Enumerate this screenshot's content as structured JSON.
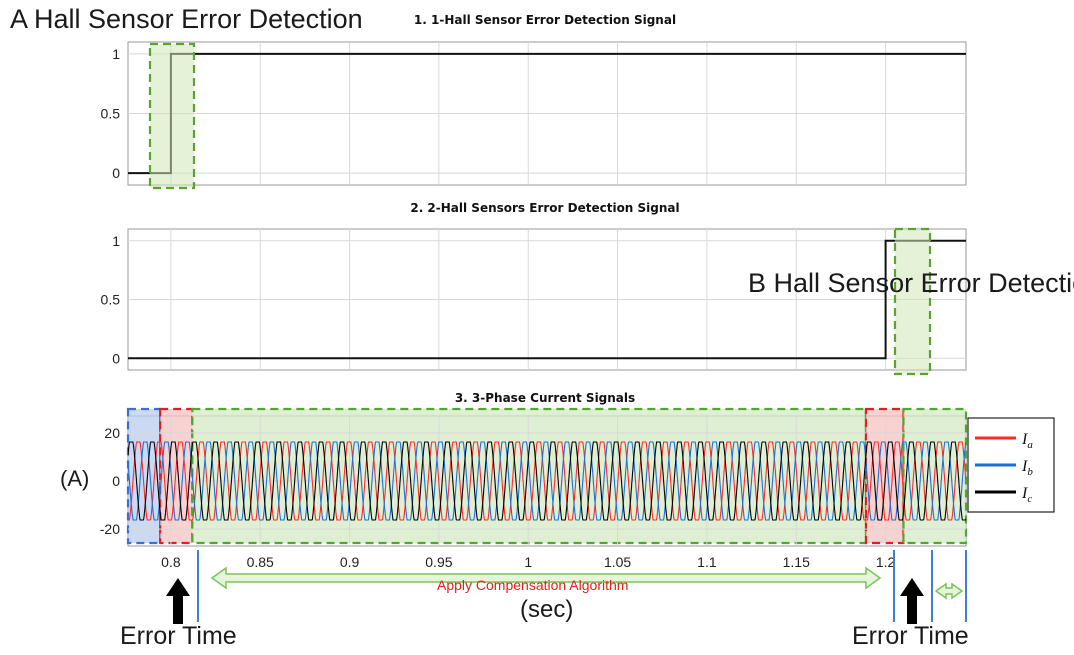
{
  "annotations": {
    "a_detect": "A Hall Sensor Error Detection",
    "b_detect": "B Hall Sensor Error Detection",
    "unit_a": "(A)",
    "unit_sec": "(sec)",
    "error_time_1": "Error Time",
    "error_time_2": "Error Time",
    "apply_comp": "Apply Compensation Algorithm"
  },
  "legend": [
    {
      "label": "I",
      "sub": "a",
      "color": "#ff2a2a"
    },
    {
      "label": "I",
      "sub": "b",
      "color": "#1f6fd6"
    },
    {
      "label": "I",
      "sub": "c",
      "color": "#000000"
    }
  ],
  "colors": {
    "highlight_green": "#4ea72e",
    "highlight_red": "#e02020",
    "highlight_blue": "#3a6fd8",
    "arrow_green": "#7cc45a"
  },
  "chart_data": [
    {
      "type": "line",
      "title": "1. 1-Hall Sensor Error Detection Signal",
      "x": [
        0.776,
        0.8,
        0.8,
        1.245
      ],
      "y": [
        0,
        0,
        1,
        1
      ],
      "xlim": [
        0.776,
        1.245
      ],
      "ylim": [
        -0.1,
        1.1
      ],
      "yticks": [
        "0",
        "0.5",
        "1"
      ],
      "grid": true
    },
    {
      "type": "line",
      "title": "2. 2-Hall Sensors Error Detection Signal",
      "x": [
        0.776,
        1.2,
        1.2,
        1.245
      ],
      "y": [
        0,
        0,
        1,
        1
      ],
      "xlim": [
        0.776,
        1.245
      ],
      "ylim": [
        -0.1,
        1.1
      ],
      "yticks": [
        "0",
        "0.5",
        "1"
      ],
      "grid": true
    },
    {
      "type": "line",
      "title": "3. 3-Phase Current Signals",
      "xlim": [
        0.776,
        1.245
      ],
      "ylim": [
        -27,
        27
      ],
      "yticks": [
        "-20",
        "0",
        "20"
      ],
      "xticks": [
        "0.8",
        "0.85",
        "0.9",
        "0.95",
        "1",
        "1.05",
        "1.1",
        "1.15",
        "1.2"
      ],
      "series": [
        {
          "name": "Ia",
          "amplitude": 15,
          "electrical_period_s": 0.0118,
          "phase_deg": 0
        },
        {
          "name": "Ib",
          "amplitude": 15,
          "electrical_period_s": 0.0118,
          "phase_deg": -120
        },
        {
          "name": "Ic",
          "amplitude": 15,
          "electrical_period_s": 0.0118,
          "phase_deg": 120
        }
      ],
      "grid": true,
      "legend": "right",
      "highlight_regions": [
        {
          "from": 0.776,
          "to": 0.794,
          "color": "blue"
        },
        {
          "from": 0.794,
          "to": 0.812,
          "color": "red"
        },
        {
          "from": 0.812,
          "to": 1.189,
          "color": "green"
        },
        {
          "from": 1.189,
          "to": 1.21,
          "color": "red"
        },
        {
          "from": 1.21,
          "to": 1.245,
          "color": "green"
        }
      ]
    }
  ]
}
